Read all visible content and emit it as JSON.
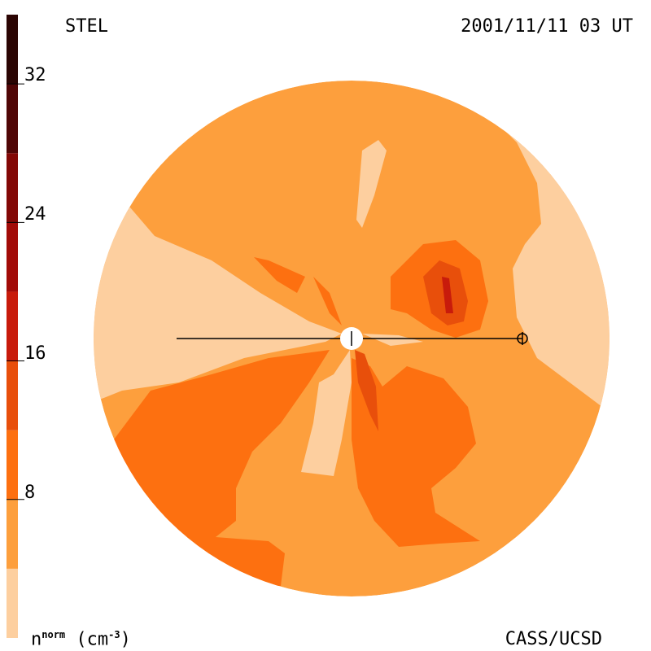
{
  "header": {
    "left_label": "STEL",
    "right_label": "2001/11/11 03 UT"
  },
  "footer": {
    "left_label": "(cm",
    "units_base": "n",
    "units_super": "norm",
    "units_exp": "-3",
    "units_close": ")",
    "right_label": "CASS/UCSD"
  },
  "colorbar": {
    "tick_labels": [
      "32",
      "24",
      "16",
      "8"
    ],
    "tick_values": [
      32,
      24,
      16,
      8
    ],
    "range": [
      0,
      36
    ],
    "levels": [
      {
        "min": 0,
        "max": 4,
        "color": "#fdcf9f"
      },
      {
        "min": 4,
        "max": 8,
        "color": "#fd9f3d"
      },
      {
        "min": 8,
        "max": 12,
        "color": "#fd7010"
      },
      {
        "min": 12,
        "max": 16,
        "color": "#e84f0b"
      },
      {
        "min": 16,
        "max": 20,
        "color": "#c81b0b"
      },
      {
        "min": 20,
        "max": 24,
        "color": "#a20b08"
      },
      {
        "min": 24,
        "max": 28,
        "color": "#830806"
      },
      {
        "min": 28,
        "max": 32,
        "color": "#500606"
      },
      {
        "min": 32,
        "max": 36,
        "color": "#2b0503"
      }
    ]
  },
  "colors": {
    "lightest": "#fdcf9f",
    "light": "#fd9f3d",
    "medium": "#fd7010",
    "dark": "#e84f0b",
    "darker": "#c81b0b",
    "darkest": "#a20b08"
  }
}
